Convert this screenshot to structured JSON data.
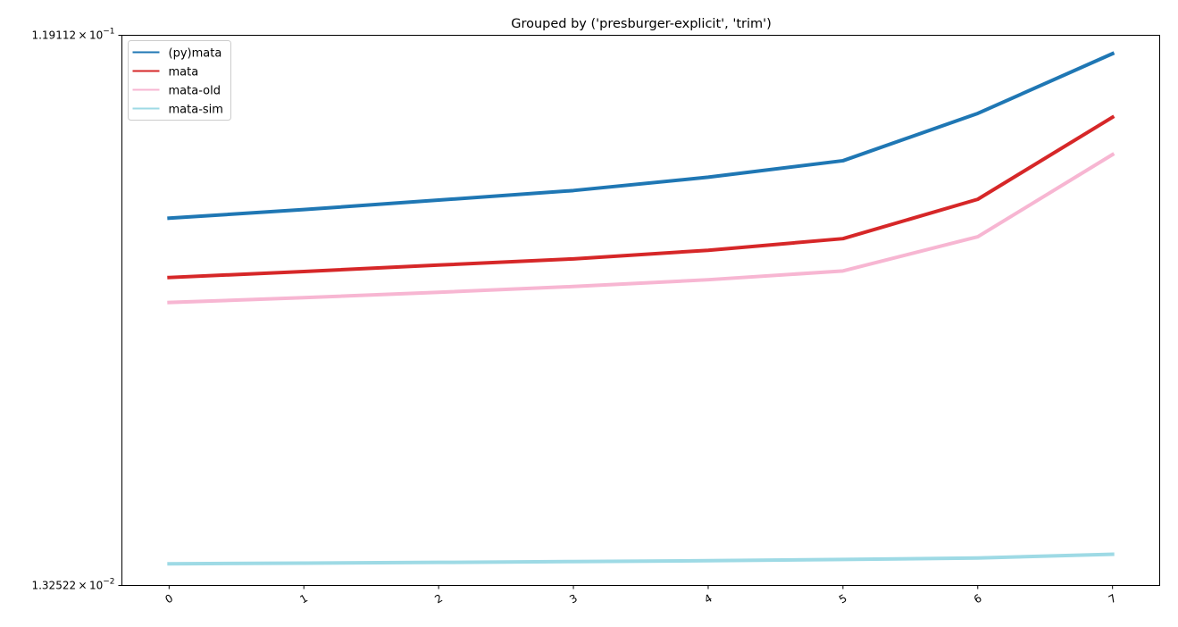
{
  "chart_data": {
    "type": "line",
    "title": "Grouped by ('presburger-explicit', 'trim')",
    "xlabel": "",
    "ylabel": "",
    "y_scale": "log",
    "ylim": [
      0.0132522,
      0.119112
    ],
    "y_tick_labels": [
      {
        "value": 0.119112,
        "mantissa": "1.19112",
        "exponent": "−1"
      },
      {
        "value": 0.0132522,
        "mantissa": "1.32522",
        "exponent": "−2"
      }
    ],
    "x": [
      0,
      1,
      2,
      3,
      4,
      5,
      6,
      7
    ],
    "x_tick_labels": [
      "0",
      "1",
      "2",
      "3",
      "4",
      "5",
      "6",
      "7"
    ],
    "grid": false,
    "legend_position": "top-left",
    "series": [
      {
        "name": "(py)mata",
        "color": "#1f77b4",
        "values": [
          0.0574,
          0.0594,
          0.0617,
          0.0641,
          0.0676,
          0.0722,
          0.0872,
          0.1107
        ]
      },
      {
        "name": "mata",
        "color": "#d62728",
        "values": [
          0.0453,
          0.0464,
          0.0476,
          0.0488,
          0.0505,
          0.0529,
          0.0619,
          0.0859
        ]
      },
      {
        "name": "mata-old",
        "color": "#f7b6d2",
        "values": [
          0.041,
          0.0418,
          0.0427,
          0.0437,
          0.0449,
          0.0465,
          0.0533,
          0.074
        ]
      },
      {
        "name": "mata-sim",
        "color": "#9edae5",
        "values": [
          0.01445,
          0.01449,
          0.01453,
          0.01458,
          0.01463,
          0.0147,
          0.01479,
          0.01501
        ]
      }
    ]
  }
}
